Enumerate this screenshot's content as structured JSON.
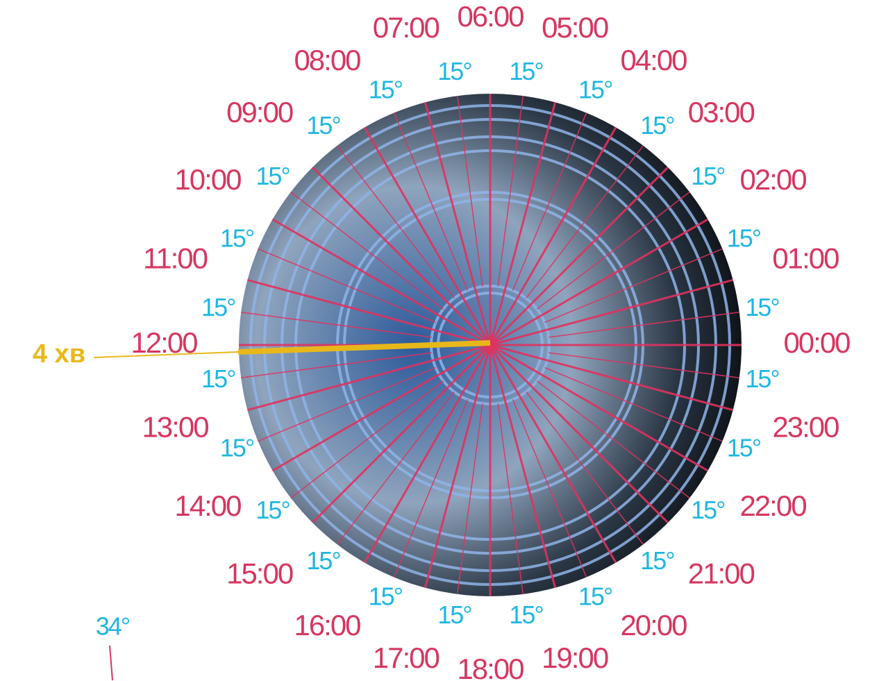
{
  "hour_labels": [
    "00:00",
    "01:00",
    "02:00",
    "03:00",
    "04:00",
    "05:00",
    "06:00",
    "07:00",
    "08:00",
    "09:00",
    "10:00",
    "11:00",
    "12:00",
    "13:00",
    "14:00",
    "15:00",
    "16:00",
    "17:00",
    "18:00",
    "19:00",
    "20:00",
    "21:00",
    "22:00",
    "23:00"
  ],
  "degree_labels": [
    "15°",
    "15°",
    "15°",
    "15°",
    "15°",
    "15°",
    "15°",
    "15°",
    "15°",
    "15°",
    "15°",
    "15°",
    "15°",
    "15°",
    "15°",
    "15°",
    "15°",
    "15°",
    "15°",
    "15°",
    "15°",
    "15°",
    "15°",
    "15°"
  ],
  "minute_label": "4 хв",
  "latitude_label": "34°"
}
